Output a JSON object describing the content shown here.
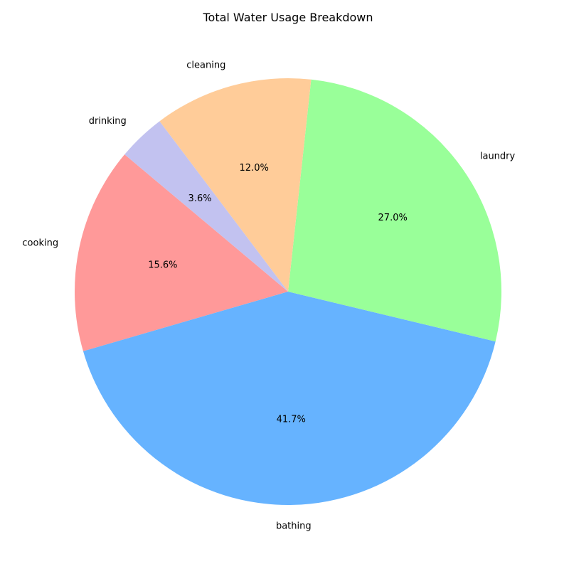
{
  "chart_data": {
    "type": "pie",
    "title": "Total Water Usage Breakdown",
    "start_angle_deg": 140,
    "direction": "counterclockwise",
    "slices": [
      {
        "label": "cooking",
        "value": 15.6,
        "pct_label": "15.6%",
        "color": "#ff9999"
      },
      {
        "label": "bathing",
        "value": 41.7,
        "pct_label": "41.7%",
        "color": "#66b3ff"
      },
      {
        "label": "laundry",
        "value": 27.0,
        "pct_label": "27.0%",
        "color": "#99ff99"
      },
      {
        "label": "cleaning",
        "value": 12.0,
        "pct_label": "12.0%",
        "color": "#ffcc99"
      },
      {
        "label": "drinking",
        "value": 3.6,
        "pct_label": "3.6%",
        "color": "#c2c2f0"
      }
    ]
  }
}
